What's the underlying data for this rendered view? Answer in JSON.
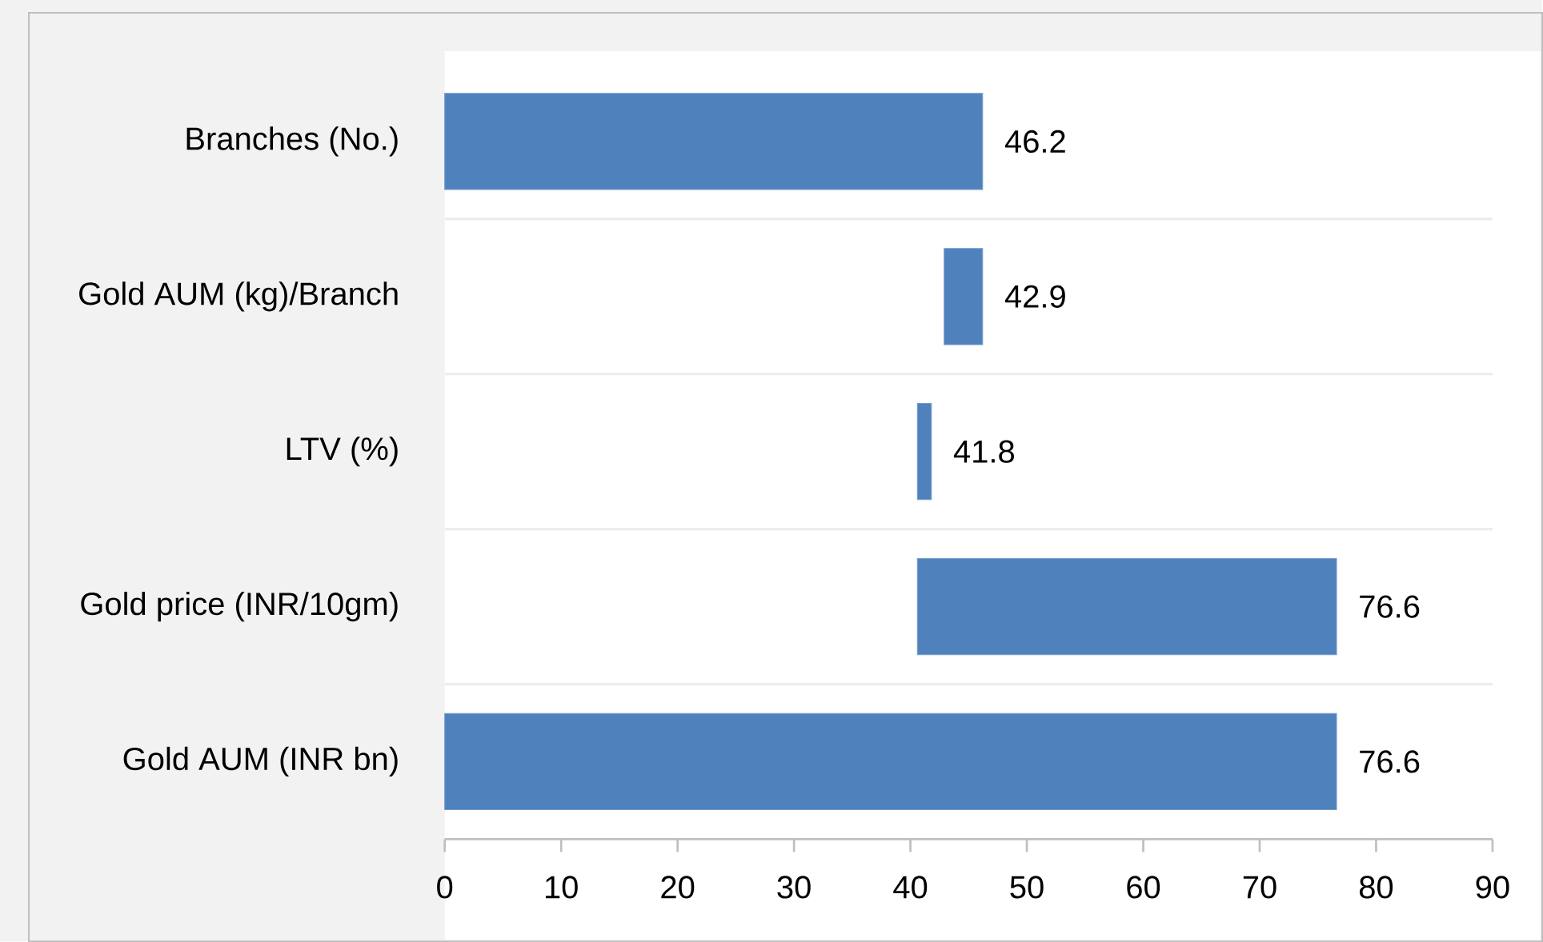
{
  "chart_data": {
    "type": "bar",
    "orientation": "horizontal",
    "categories": [
      "Branches (No.)",
      "Gold AUM (kg)/Branch",
      "LTV (%)",
      "Gold price (INR/10gm)",
      "Gold AUM (INR bn)"
    ],
    "values": [
      46.2,
      -3.3,
      1.2,
      36.0,
      76.6
    ],
    "base": [
      0,
      46.2,
      40.6,
      40.6,
      0
    ],
    "value_labels": [
      "46.2",
      "42.9",
      "41.8",
      "76.6",
      "76.6"
    ],
    "color": "#4f81bd",
    "xlim": [
      0,
      90
    ],
    "xticks": [
      0,
      10,
      20,
      30,
      40,
      50,
      60,
      70,
      80,
      90
    ],
    "grid": "y"
  }
}
